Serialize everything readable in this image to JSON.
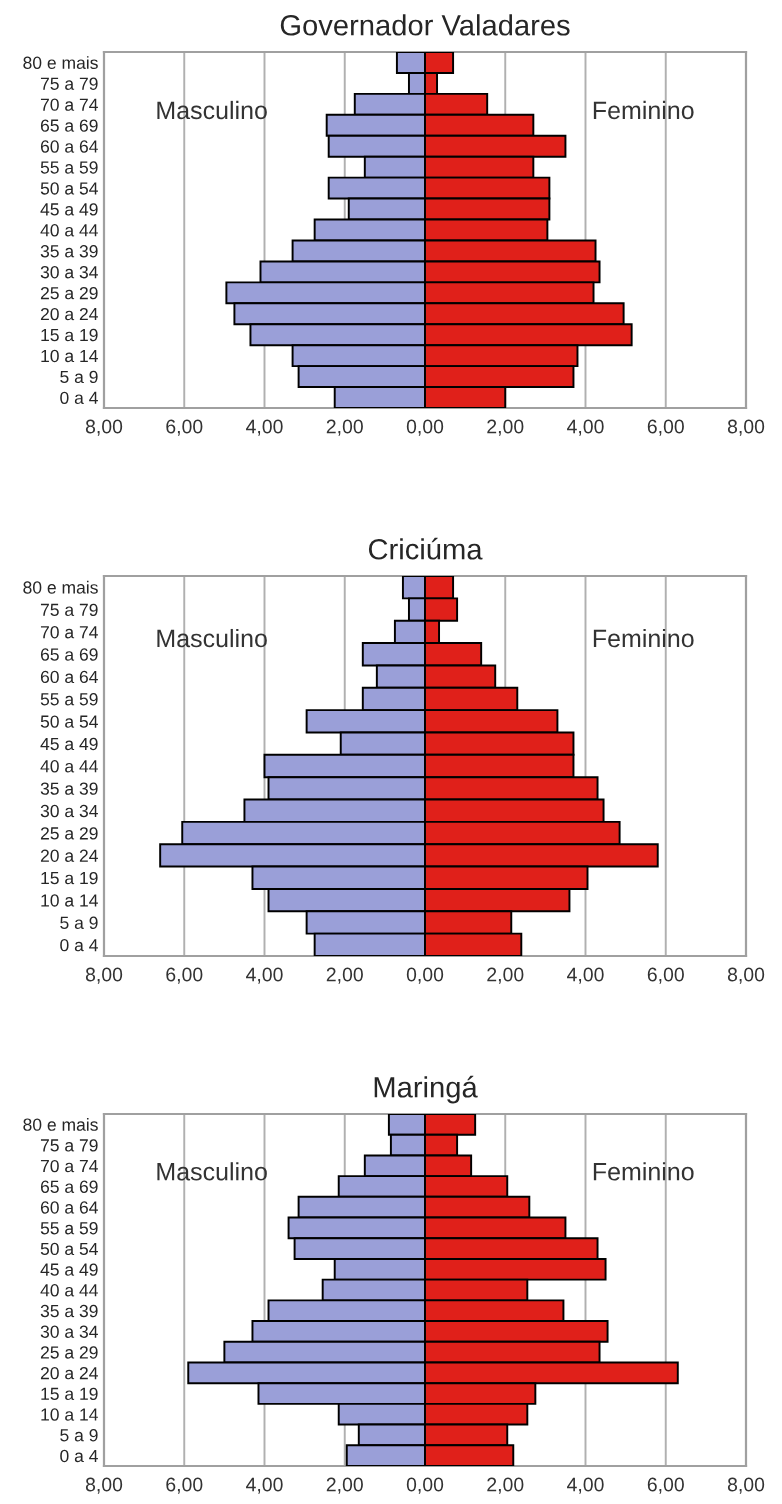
{
  "chart_data": [
    {
      "type": "bar",
      "title": "Governador Valadares",
      "orientation": "horizontal",
      "stacked": true,
      "grid": "x",
      "categories": [
        "80 e mais",
        "75 a 79",
        "70 a 74",
        "65 a 69",
        "60 a 64",
        "55 a 59",
        "50 a 54",
        "45 a 49",
        "40 a 44",
        "35 a 39",
        "30 a 34",
        "25 a 29",
        "20 a 24",
        "15 a 19",
        "10 a 14",
        "5 a 9",
        "0 a 4"
      ],
      "series": [
        {
          "name": "Masculino",
          "color": "#9a9fd8",
          "values": [
            -0.7,
            -0.4,
            -1.75,
            -2.45,
            -2.4,
            -1.5,
            -2.4,
            -1.9,
            -2.75,
            -3.3,
            -4.1,
            -4.95,
            -4.75,
            -4.35,
            -3.3,
            -3.15,
            -2.25
          ]
        },
        {
          "name": "Feminino",
          "color": "#e0201a",
          "values": [
            0.7,
            0.3,
            1.55,
            2.7,
            3.5,
            2.7,
            3.1,
            3.1,
            3.05,
            4.25,
            4.35,
            4.2,
            4.95,
            5.15,
            3.8,
            3.7,
            2.0
          ]
        }
      ],
      "xlim": [
        -8,
        8
      ],
      "xticks": [
        {
          "value": -8,
          "label": "8,00"
        },
        {
          "value": -6,
          "label": "6,00"
        },
        {
          "value": -4,
          "label": "4,00"
        },
        {
          "value": -2,
          "label": "2,00"
        },
        {
          "value": 0,
          "label": "0,00"
        },
        {
          "value": 2,
          "label": "2,00"
        },
        {
          "value": 4,
          "label": "4,00"
        },
        {
          "value": 6,
          "label": "6,00"
        },
        {
          "value": 8,
          "label": "8,00"
        }
      ]
    },
    {
      "type": "bar",
      "title": "Criciúma",
      "orientation": "horizontal",
      "stacked": true,
      "grid": "x",
      "categories": [
        "80 e mais",
        "75 a 79",
        "70 a 74",
        "65 a 69",
        "60 a 64",
        "55 a 59",
        "50 a 54",
        "45 a 49",
        "40 a 44",
        "35 a 39",
        "30 a 34",
        "25 a 29",
        "20 a 24",
        "15 a 19",
        "10 a 14",
        "5 a 9",
        "0 a 4"
      ],
      "series": [
        {
          "name": "Masculino",
          "color": "#9a9fd8",
          "values": [
            -0.55,
            -0.4,
            -0.75,
            -1.55,
            -1.2,
            -1.55,
            -2.95,
            -2.1,
            -4.0,
            -3.9,
            -4.5,
            -6.05,
            -6.6,
            -4.3,
            -3.9,
            -2.95,
            -2.75
          ]
        },
        {
          "name": "Feminino",
          "color": "#e0201a",
          "values": [
            0.7,
            0.8,
            0.35,
            1.4,
            1.75,
            2.3,
            3.3,
            3.7,
            3.7,
            4.3,
            4.45,
            4.85,
            5.8,
            4.05,
            3.6,
            2.15,
            2.4
          ]
        }
      ],
      "xlim": [
        -8,
        8
      ],
      "xticks": [
        {
          "value": -8,
          "label": "8,00"
        },
        {
          "value": -6,
          "label": "6,00"
        },
        {
          "value": -4,
          "label": "4,00"
        },
        {
          "value": -2,
          "label": "2,00"
        },
        {
          "value": 0,
          "label": "0,00"
        },
        {
          "value": 2,
          "label": "2,00"
        },
        {
          "value": 4,
          "label": "4,00"
        },
        {
          "value": 6,
          "label": "6,00"
        },
        {
          "value": 8,
          "label": "8,00"
        }
      ]
    },
    {
      "type": "bar",
      "title": "Maringá",
      "orientation": "horizontal",
      "stacked": true,
      "grid": "x",
      "categories": [
        "80 e mais",
        "75 a 79",
        "70 a 74",
        "65 a 69",
        "60 a 64",
        "55 a 59",
        "50 a 54",
        "45 a 49",
        "40 a 44",
        "35 a 39",
        "30 a 34",
        "25 a 29",
        "20 a 24",
        "15 a 19",
        "10 a 14",
        "5 a 9",
        "0 a 4"
      ],
      "series": [
        {
          "name": "Masculino",
          "color": "#9a9fd8",
          "values": [
            -0.9,
            -0.85,
            -1.5,
            -2.15,
            -3.15,
            -3.4,
            -3.25,
            -2.25,
            -2.55,
            -3.9,
            -4.3,
            -5.0,
            -5.9,
            -4.15,
            -2.15,
            -1.65,
            -1.95
          ]
        },
        {
          "name": "Feminino",
          "color": "#e0201a",
          "values": [
            1.25,
            0.8,
            1.15,
            2.05,
            2.6,
            3.5,
            4.3,
            4.5,
            2.55,
            3.45,
            4.55,
            4.35,
            6.3,
            2.75,
            2.55,
            2.05,
            2.2
          ]
        }
      ],
      "xlim": [
        -8,
        8
      ],
      "xticks": [
        {
          "value": -8,
          "label": "8,00"
        },
        {
          "value": -6,
          "label": "6,00"
        },
        {
          "value": -4,
          "label": "4,00"
        },
        {
          "value": -2,
          "label": "2,00"
        },
        {
          "value": 0,
          "label": "0,00"
        },
        {
          "value": 2,
          "label": "2,00"
        },
        {
          "value": 4,
          "label": "4,00"
        },
        {
          "value": 6,
          "label": "6,00"
        },
        {
          "value": 8,
          "label": "8,00"
        }
      ]
    }
  ]
}
